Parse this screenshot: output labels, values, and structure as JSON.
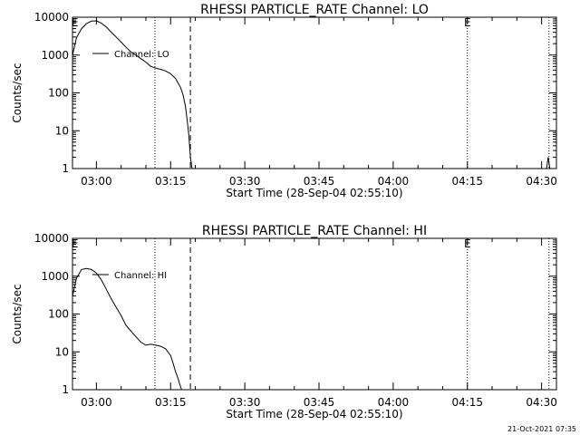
{
  "footer_timestamp": "21-Oct-2021 07:35",
  "chart_data": [
    {
      "type": "line",
      "title": "RHESSI PARTICLE_RATE Channel: LO",
      "xlabel": "Start Time (28-Sep-04 02:55:10)",
      "ylabel": "Counts/sec",
      "yscale": "log",
      "ylim": [
        1,
        10000
      ],
      "xlim": [
        "02:55:10",
        "04:33:00"
      ],
      "x_ticks": [
        "03:00",
        "03:15",
        "03:30",
        "03:45",
        "04:00",
        "04:15",
        "04:30"
      ],
      "y_ticks": [
        "1",
        "10",
        "100",
        "1000",
        "10000"
      ],
      "legend": {
        "label": "Channel: LO",
        "position": "top-left"
      },
      "markers": [
        {
          "label": "E",
          "time": "02:55:40"
        },
        {
          "label": "E",
          "time": "04:15:00"
        }
      ],
      "dotted_lines": [
        "03:11:50",
        "04:15:00",
        "04:31:30"
      ],
      "dashed_lines": [
        "03:19:00"
      ],
      "series": [
        {
          "name": "Channel: LO",
          "x": [
            "02:55:10",
            "02:56:00",
            "02:57:00",
            "02:58:00",
            "02:59:00",
            "03:00:00",
            "03:01:00",
            "03:02:00",
            "03:03:00",
            "03:04:00",
            "03:05:00",
            "03:06:00",
            "03:07:00",
            "03:08:00",
            "03:09:00",
            "03:10:00",
            "03:11:00",
            "03:12:00",
            "03:13:00",
            "03:14:00",
            "03:15:00",
            "03:16:00",
            "03:17:00",
            "03:17:30",
            "03:18:00",
            "03:18:20",
            "03:18:40",
            "03:19:00",
            "03:19:20"
          ],
          "values": [
            1000,
            2900,
            5000,
            6800,
            7900,
            8000,
            7000,
            5500,
            4000,
            3000,
            2200,
            1600,
            1200,
            1000,
            800,
            650,
            500,
            450,
            420,
            380,
            320,
            240,
            140,
            90,
            45,
            20,
            8,
            2,
            1
          ]
        },
        {
          "name": "",
          "x": [
            "04:31:00",
            "04:31:20",
            "04:31:40"
          ],
          "values": [
            1,
            2,
            1
          ]
        }
      ]
    },
    {
      "type": "line",
      "title": "RHESSI PARTICLE_RATE Channel: HI",
      "xlabel": "Start Time (28-Sep-04 02:55:10)",
      "ylabel": "Counts/sec",
      "yscale": "log",
      "ylim": [
        1,
        10000
      ],
      "xlim": [
        "02:55:10",
        "04:33:00"
      ],
      "x_ticks": [
        "03:00",
        "03:15",
        "03:30",
        "03:45",
        "04:00",
        "04:15",
        "04:30"
      ],
      "y_ticks": [
        "1",
        "10",
        "100",
        "1000",
        "10000"
      ],
      "legend": {
        "label": "Channel: HI",
        "position": "top-left"
      },
      "markers": [
        {
          "label": "E",
          "time": "02:55:40"
        },
        {
          "label": "E",
          "time": "04:15:00"
        }
      ],
      "dotted_lines": [
        "03:11:50",
        "04:15:00",
        "04:31:30"
      ],
      "dashed_lines": [
        "03:19:00"
      ],
      "series": [
        {
          "name": "Channel: HI",
          "x": [
            "02:55:10",
            "02:56:00",
            "02:57:00",
            "02:58:00",
            "02:59:00",
            "03:00:00",
            "03:01:00",
            "03:02:00",
            "03:03:00",
            "03:04:00",
            "03:05:00",
            "03:06:00",
            "03:07:00",
            "03:08:00",
            "03:09:00",
            "03:10:00",
            "03:11:00",
            "03:12:00",
            "03:13:00",
            "03:14:00",
            "03:15:00",
            "03:15:30",
            "03:16:00",
            "03:16:30",
            "03:17:00",
            "03:17:15"
          ],
          "values": [
            300,
            900,
            1500,
            1600,
            1500,
            1200,
            800,
            450,
            250,
            150,
            90,
            50,
            35,
            25,
            18,
            15,
            16,
            15,
            14,
            12,
            8,
            5,
            3,
            2,
            1.2,
            1
          ]
        }
      ]
    }
  ]
}
